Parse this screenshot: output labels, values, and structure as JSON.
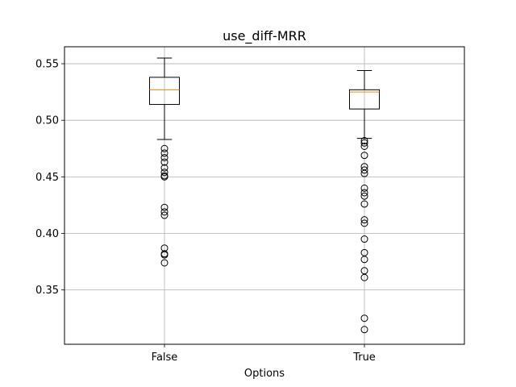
{
  "chart_data": {
    "type": "box",
    "title": "use_diff-MRR",
    "xlabel": "Options",
    "ylabel": "",
    "categories": [
      "False",
      "True"
    ],
    "ylim": [
      0.302,
      0.565
    ],
    "yticks": [
      0.35,
      0.4,
      0.45,
      0.5,
      0.55
    ],
    "ytick_labels": [
      "0.35",
      "0.40",
      "0.45",
      "0.50",
      "0.55"
    ],
    "grid": true,
    "series": [
      {
        "category": "False",
        "whisker_low": 0.483,
        "q1": 0.514,
        "median": 0.527,
        "q3": 0.538,
        "whisker_high": 0.555,
        "outliers": [
          0.475,
          0.471,
          0.467,
          0.463,
          0.458,
          0.454,
          0.451,
          0.45,
          0.423,
          0.419,
          0.416,
          0.387,
          0.382,
          0.381,
          0.374
        ]
      },
      {
        "category": "True",
        "whisker_low": 0.484,
        "q1": 0.51,
        "median": 0.525,
        "q3": 0.527,
        "whisker_high": 0.544,
        "outliers": [
          0.482,
          0.48,
          0.477,
          0.469,
          0.459,
          0.456,
          0.453,
          0.44,
          0.436,
          0.433,
          0.426,
          0.412,
          0.409,
          0.395,
          0.383,
          0.377,
          0.367,
          0.361,
          0.325,
          0.315
        ]
      }
    ],
    "colors": {
      "box": "#000000",
      "median": "#ff7f0e",
      "grid": "#b0b0b0"
    }
  }
}
